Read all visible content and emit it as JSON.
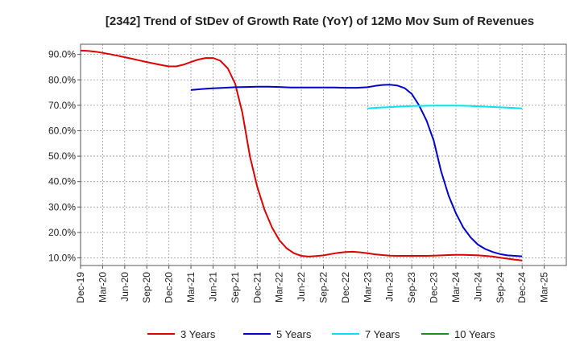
{
  "chart_data": {
    "type": "line",
    "title": "[2342]  Trend of StDev of Growth Rate (YoY) of 12Mo Mov Sum of Revenues",
    "xlabel": "",
    "ylabel": "",
    "ylim": [
      7.0,
      94.0
    ],
    "y_ticks": [
      10,
      20,
      30,
      40,
      50,
      60,
      70,
      80,
      90
    ],
    "y_tick_labels": [
      "10.0%",
      "20.0%",
      "30.0%",
      "40.0%",
      "50.0%",
      "60.0%",
      "70.0%",
      "80.0%",
      "90.0%"
    ],
    "x_tick_labels": [
      "Dec-19",
      "Mar-20",
      "Jun-20",
      "Sep-20",
      "Dec-20",
      "Mar-21",
      "Jun-21",
      "Sep-21",
      "Dec-21",
      "Mar-22",
      "Jun-22",
      "Sep-22",
      "Dec-22",
      "Mar-23",
      "Jun-23",
      "Sep-23",
      "Dec-23",
      "Mar-24",
      "Jun-24",
      "Sep-24",
      "Dec-24",
      "Mar-25"
    ],
    "grid": true,
    "legend_position": "bottom",
    "series": [
      {
        "name": "3 Years",
        "color": "#dd0000",
        "x": [
          0,
          0.33,
          0.67,
          1,
          1.33,
          1.67,
          2,
          2.33,
          2.67,
          3,
          3.33,
          3.67,
          4,
          4.33,
          4.67,
          5,
          5.33,
          5.67,
          6,
          6.33,
          6.67,
          7,
          7.33,
          7.67,
          8,
          8.33,
          8.67,
          9,
          9.33,
          9.67,
          10,
          10.33,
          10.67,
          11,
          11.33,
          11.67,
          12,
          12.33,
          12.67,
          13,
          13.33,
          13.67,
          14,
          14.33,
          14.67,
          15,
          15.33,
          15.67,
          16,
          16.33,
          16.67,
          17,
          17.33,
          17.67,
          18,
          18.33,
          18.67,
          19,
          19.33,
          19.67,
          20
        ],
        "values": [
          91.5,
          91.4,
          91.1,
          90.6,
          90.1,
          89.5,
          88.9,
          88.3,
          87.6,
          87.0,
          86.4,
          85.8,
          85.3,
          85.3,
          86.0,
          87.0,
          88.0,
          88.6,
          88.6,
          87.5,
          84.5,
          78.5,
          67.0,
          50.0,
          38.0,
          29.0,
          22.0,
          17.0,
          13.8,
          11.8,
          10.8,
          10.5,
          10.7,
          11.0,
          11.5,
          12.0,
          12.3,
          12.4,
          12.2,
          11.8,
          11.4,
          11.1,
          10.9,
          10.8,
          10.8,
          10.8,
          10.8,
          10.8,
          10.9,
          11.0,
          11.1,
          11.2,
          11.2,
          11.1,
          11.0,
          10.8,
          10.5,
          10.1,
          9.7,
          9.3,
          9.0
        ]
      },
      {
        "name": "5 Years",
        "color": "#0000cc",
        "x": [
          5,
          5.5,
          6,
          6.5,
          7,
          7.5,
          8,
          8.5,
          9,
          9.5,
          10,
          10.5,
          11,
          11.5,
          12,
          12.5,
          13,
          13.33,
          13.67,
          14,
          14.33,
          14.67,
          15,
          15.33,
          15.67,
          16,
          16.33,
          16.67,
          17,
          17.33,
          17.67,
          18,
          18.33,
          18.67,
          19,
          19.33,
          19.67,
          20
        ],
        "values": [
          76.0,
          76.4,
          76.7,
          76.9,
          77.1,
          77.2,
          77.3,
          77.3,
          77.2,
          77.0,
          77.0,
          77.0,
          77.0,
          77.0,
          76.9,
          76.9,
          77.1,
          77.6,
          78.0,
          78.1,
          77.8,
          76.8,
          74.5,
          70.0,
          64.0,
          56.0,
          44.0,
          34.5,
          27.5,
          22.0,
          18.0,
          15.2,
          13.5,
          12.3,
          11.5,
          11.0,
          10.8,
          10.6
        ]
      },
      {
        "name": "7 Years",
        "color": "#00e5ee",
        "x": [
          13,
          13.5,
          14,
          14.5,
          15,
          15.5,
          16,
          16.5,
          17,
          17.5,
          18,
          18.5,
          19,
          19.5,
          20
        ],
        "values": [
          68.8,
          69.1,
          69.3,
          69.5,
          69.7,
          69.8,
          69.9,
          69.9,
          69.9,
          69.8,
          69.6,
          69.4,
          69.2,
          69.0,
          68.8
        ]
      },
      {
        "name": "10 Years",
        "color": "#228b22",
        "x": [],
        "values": []
      }
    ]
  }
}
